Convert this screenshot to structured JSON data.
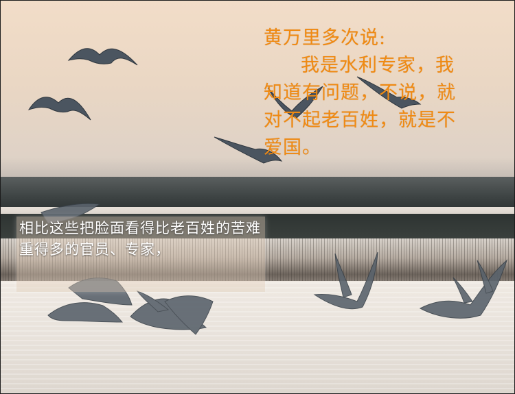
{
  "top_text": {
    "line1": "黄万里多次说:",
    "line2": "我是水利专家，我",
    "line3": "知道有问题，不说，就",
    "line4": "对不起老百姓，就是不",
    "line5": "爱国。"
  },
  "caption": {
    "text": "相比这些把脸面看得比老百姓的苦难重得多的官员、专家，"
  },
  "colors": {
    "top_text": "#f08a12",
    "caption_text": "#ffffff",
    "sky": "#ead7c4",
    "water": "#e8e2db"
  }
}
